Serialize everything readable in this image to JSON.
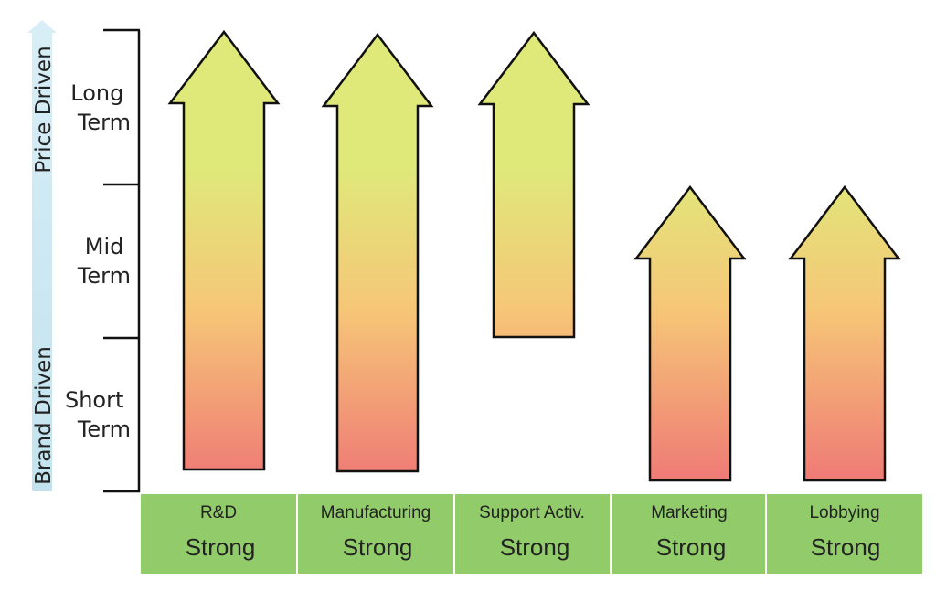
{
  "side_axis": {
    "top_label": "Price Driven",
    "bottom_label": "Brand Driven",
    "color": "#cfe8f3"
  },
  "time_levels": [
    {
      "line1": "Long",
      "line2": "Term"
    },
    {
      "line1": "Mid",
      "line2": "Term"
    },
    {
      "line1": "Short",
      "line2": "Term"
    }
  ],
  "columns": [
    {
      "name": "R&D",
      "strength": "Strong",
      "reach": "Long Term",
      "start": "Short Term"
    },
    {
      "name": "Manufacturing",
      "strength": "Strong",
      "reach": "Long Term",
      "start": "Short Term"
    },
    {
      "name": "Support Activ.",
      "strength": "Strong",
      "reach": "Long Term",
      "start": "Mid Term"
    },
    {
      "name": "Marketing",
      "strength": "Strong",
      "reach": "Mid Term",
      "start": "Short Term"
    },
    {
      "name": "Lobbying",
      "strength": "Strong",
      "reach": "Mid Term",
      "start": "Short Term"
    }
  ],
  "colors": {
    "arrow_top": "#dfe97a",
    "arrow_mid": "#f6c677",
    "arrow_bottom": "#ef7a76",
    "category_band": "#92cc6a"
  }
}
